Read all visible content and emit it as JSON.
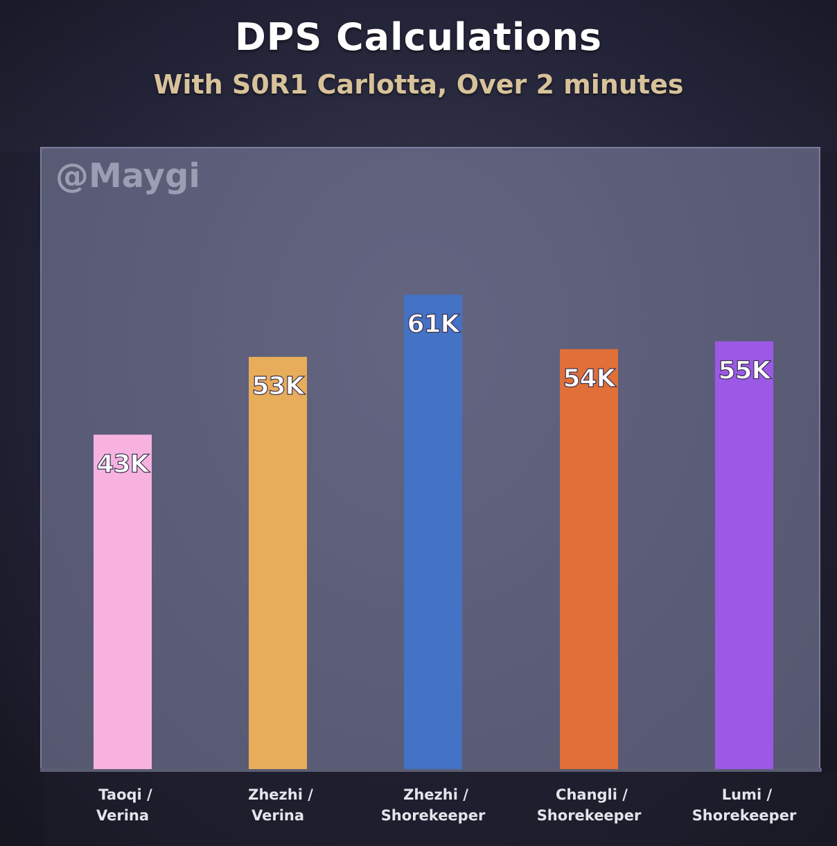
{
  "header": {
    "title": "DPS Calculations",
    "subtitle": "With S0R1 Carlotta, Over 2 minutes"
  },
  "watermark": "@Maygi",
  "chart_data": {
    "type": "bar",
    "categories": [
      [
        "Taoqi /",
        "Verina"
      ],
      [
        "Zhezhi /",
        "Verina"
      ],
      [
        "Zhezhi /",
        "Shorekeeper"
      ],
      [
        "Changli /",
        "Shorekeeper"
      ],
      [
        "Lumi /",
        "Shorekeeper"
      ]
    ],
    "values": [
      43,
      53,
      61,
      54,
      55
    ],
    "data_labels": [
      "43K",
      "53K",
      "61K",
      "54K",
      "55K"
    ],
    "colors": [
      "#f7b2e0",
      "#e8ad5a",
      "#4472c4",
      "#e06f38",
      "#9b59e6"
    ],
    "title": "DPS Calculations",
    "subtitle": "With S0R1 Carlotta, Over 2 minutes",
    "ylim": [
      0,
      80
    ],
    "grid": false,
    "legend": "none"
  }
}
